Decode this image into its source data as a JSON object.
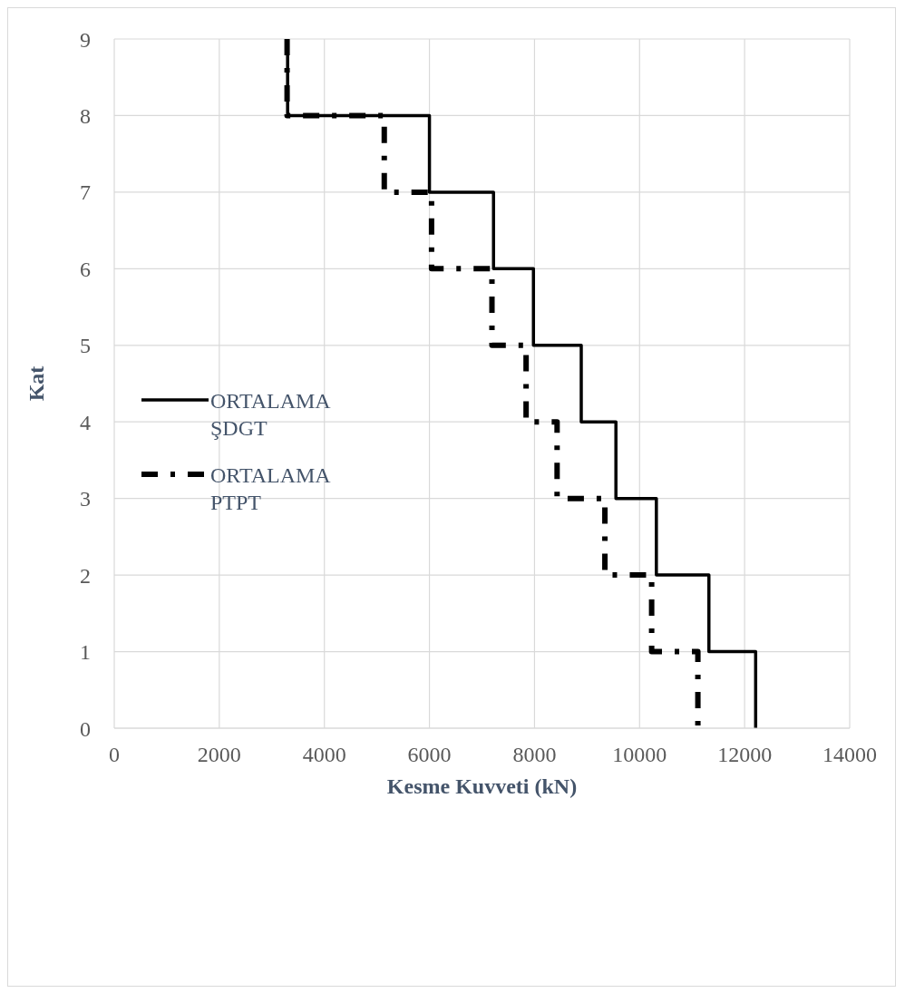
{
  "chart_data": {
    "type": "line",
    "xlabel": "Kesme Kuvveti (kN)",
    "ylabel": "Kat",
    "xlim": [
      0,
      14000
    ],
    "xticks": [
      0,
      2000,
      4000,
      6000,
      8000,
      10000,
      12000,
      14000
    ],
    "ylim": [
      0,
      9
    ],
    "yticks": [
      0,
      1,
      2,
      3,
      4,
      5,
      6,
      7,
      8,
      9
    ],
    "grid": true,
    "legend": "left",
    "marker": "none",
    "series": [
      {
        "name": "ORTALAMA ŞDGT",
        "color": "#000000",
        "line_style": "solid",
        "x": [
          3300,
          3300,
          6000,
          6000,
          7220,
          7220,
          7980,
          7980,
          8890,
          8890,
          9550,
          9550,
          10320,
          10320,
          11320,
          11320,
          12210,
          12210
        ],
        "values": [
          9,
          8,
          8,
          7,
          7,
          6,
          6,
          5,
          5,
          4,
          4,
          3,
          3,
          2,
          2,
          1,
          1,
          0
        ]
      },
      {
        "name": "ORTALAMA PTPT",
        "color": "#000000",
        "line_style": "dashdot",
        "x": [
          3290,
          3290,
          5140,
          5140,
          6040,
          6040,
          7190,
          7190,
          7840,
          7840,
          8430,
          8430,
          9340,
          9340,
          10230,
          10230,
          11110,
          11110
        ],
        "values": [
          9,
          8,
          8,
          7,
          7,
          6,
          6,
          5,
          5,
          4,
          4,
          3,
          3,
          2,
          2,
          1,
          1,
          0
        ]
      }
    ]
  }
}
